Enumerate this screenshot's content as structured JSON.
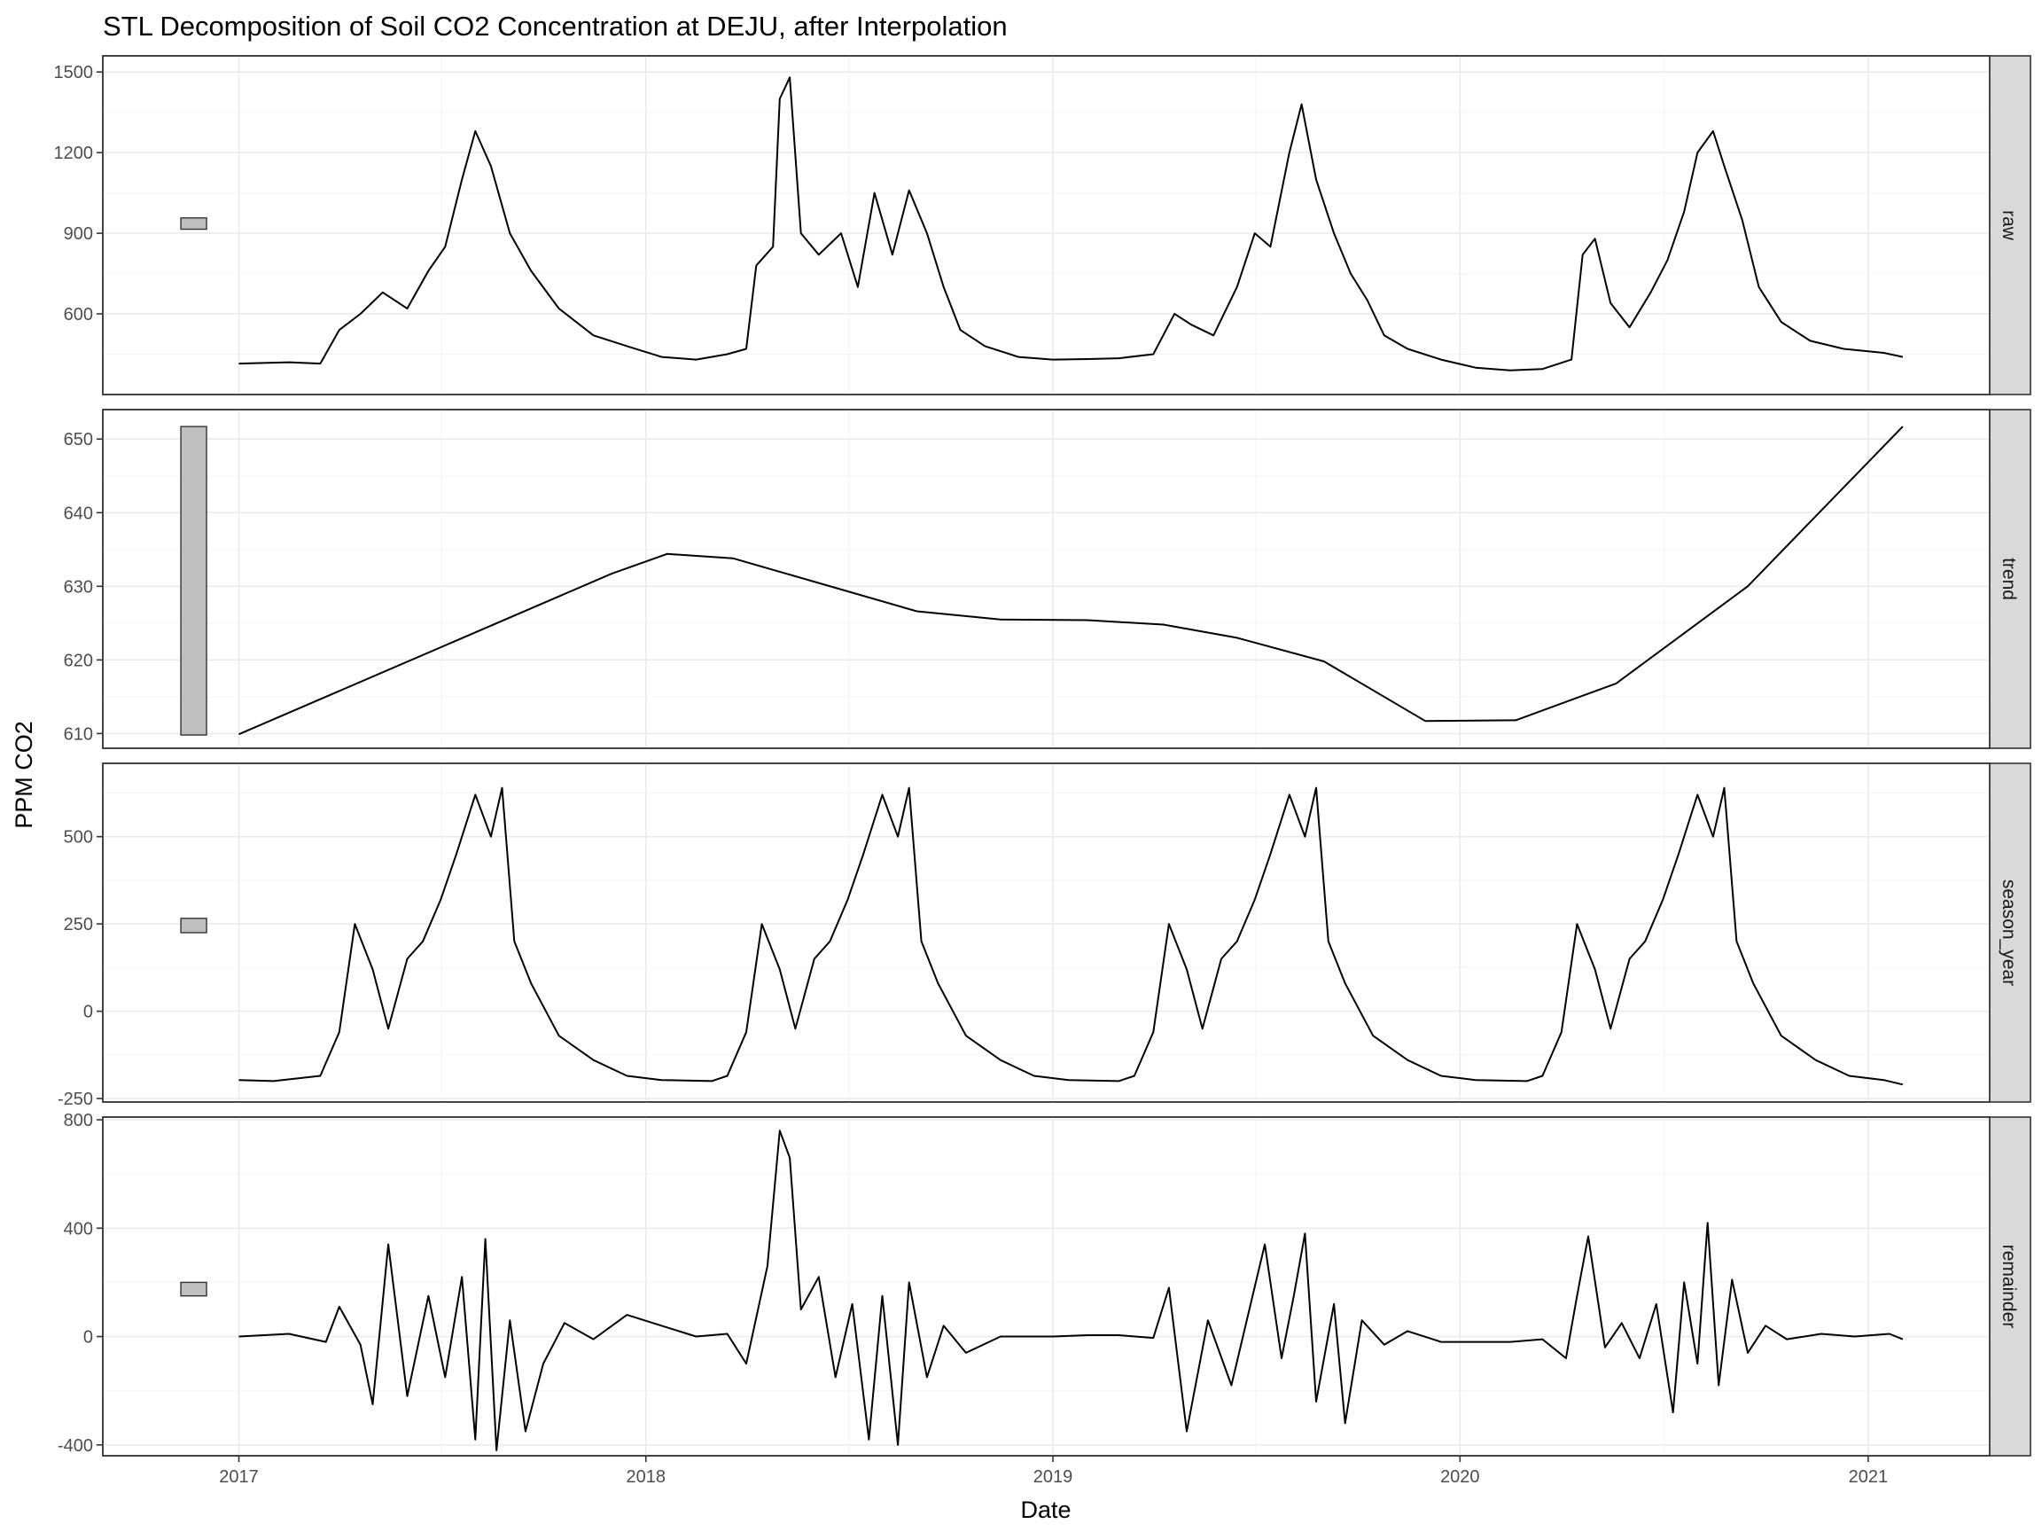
{
  "chart_data": {
    "type": "line",
    "title": "STL Decomposition of Soil CO2 Concentration at DEJU, after Interpolation",
    "xlabel": "Date",
    "ylabel": "PPM CO2",
    "x_ticks": [
      "2017",
      "2018",
      "2019",
      "2020",
      "2021"
    ],
    "xlim": [
      "2016-09-01",
      "2021-04-20"
    ],
    "grid": true,
    "legend": "none",
    "line_color": "#000000",
    "panels": [
      {
        "name": "raw",
        "ylim": [
          300,
          1560
        ],
        "y_ticks": [
          600,
          900,
          1200,
          1500
        ],
        "y_tick_labels": [
          "600",
          "900",
          "1200",
          "1500"
        ],
        "scale_bar": [
          915,
          957
        ],
        "points": [
          [
            "2017-01-01",
            415
          ],
          [
            "2017-02-15",
            420
          ],
          [
            "2017-03-15",
            415
          ],
          [
            "2017-04-01",
            540
          ],
          [
            "2017-04-20",
            600
          ],
          [
            "2017-05-10",
            680
          ],
          [
            "2017-06-01",
            620
          ],
          [
            "2017-06-20",
            760
          ],
          [
            "2017-07-05",
            850
          ],
          [
            "2017-07-20",
            1100
          ],
          [
            "2017-08-01",
            1280
          ],
          [
            "2017-08-15",
            1150
          ],
          [
            "2017-09-01",
            900
          ],
          [
            "2017-09-20",
            760
          ],
          [
            "2017-10-15",
            620
          ],
          [
            "2017-11-15",
            520
          ],
          [
            "2017-12-15",
            480
          ],
          [
            "2018-01-15",
            440
          ],
          [
            "2018-02-15",
            430
          ],
          [
            "2018-03-15",
            450
          ],
          [
            "2018-04-01",
            470
          ],
          [
            "2018-04-10",
            780
          ],
          [
            "2018-04-25",
            850
          ],
          [
            "2018-05-01",
            1400
          ],
          [
            "2018-05-10",
            1480
          ],
          [
            "2018-05-20",
            900
          ],
          [
            "2018-06-05",
            820
          ],
          [
            "2018-06-25",
            900
          ],
          [
            "2018-07-10",
            700
          ],
          [
            "2018-07-25",
            1050
          ],
          [
            "2018-08-10",
            820
          ],
          [
            "2018-08-25",
            1060
          ],
          [
            "2018-09-10",
            900
          ],
          [
            "2018-09-25",
            700
          ],
          [
            "2018-10-10",
            540
          ],
          [
            "2018-11-01",
            480
          ],
          [
            "2018-12-01",
            440
          ],
          [
            "2019-01-01",
            430
          ],
          [
            "2019-02-01",
            432
          ],
          [
            "2019-03-01",
            435
          ],
          [
            "2019-04-01",
            450
          ],
          [
            "2019-04-20",
            600
          ],
          [
            "2019-05-05",
            560
          ],
          [
            "2019-05-25",
            520
          ],
          [
            "2019-06-15",
            700
          ],
          [
            "2019-07-01",
            900
          ],
          [
            "2019-07-15",
            850
          ],
          [
            "2019-08-01",
            1200
          ],
          [
            "2019-08-12",
            1380
          ],
          [
            "2019-08-25",
            1100
          ],
          [
            "2019-09-10",
            900
          ],
          [
            "2019-09-25",
            750
          ],
          [
            "2019-10-10",
            650
          ],
          [
            "2019-10-25",
            520
          ],
          [
            "2019-11-15",
            470
          ],
          [
            "2019-12-15",
            430
          ],
          [
            "2020-01-15",
            400
          ],
          [
            "2020-02-15",
            390
          ],
          [
            "2020-03-15",
            395
          ],
          [
            "2020-04-10",
            430
          ],
          [
            "2020-04-20",
            820
          ],
          [
            "2020-05-01",
            880
          ],
          [
            "2020-05-15",
            640
          ],
          [
            "2020-06-01",
            550
          ],
          [
            "2020-06-20",
            680
          ],
          [
            "2020-07-05",
            800
          ],
          [
            "2020-07-20",
            980
          ],
          [
            "2020-08-01",
            1200
          ],
          [
            "2020-08-15",
            1280
          ],
          [
            "2020-08-25",
            1150
          ],
          [
            "2020-09-10",
            950
          ],
          [
            "2020-09-25",
            700
          ],
          [
            "2020-10-15",
            570
          ],
          [
            "2020-11-10",
            500
          ],
          [
            "2020-12-10",
            470
          ],
          [
            "2021-01-15",
            455
          ],
          [
            "2021-02-01",
            440
          ]
        ]
      },
      {
        "name": "trend",
        "ylim": [
          608,
          654
        ],
        "y_ticks": [
          610,
          620,
          630,
          640,
          650
        ],
        "y_tick_labels": [
          "610",
          "620",
          "630",
          "640",
          "650"
        ],
        "scale_bar": [
          609.8,
          651.7
        ],
        "points": [
          [
            "2017-01-01",
            609.9
          ],
          [
            "2017-12-01",
            631.7
          ],
          [
            "2018-01-20",
            634.4
          ],
          [
            "2018-03-20",
            633.8
          ],
          [
            "2018-09-01",
            626.6
          ],
          [
            "2018-11-15",
            625.5
          ],
          [
            "2019-02-01",
            625.4
          ],
          [
            "2019-04-10",
            624.8
          ],
          [
            "2019-06-15",
            623.0
          ],
          [
            "2019-09-01",
            619.8
          ],
          [
            "2019-12-01",
            611.7
          ],
          [
            "2020-02-20",
            611.8
          ],
          [
            "2020-05-20",
            616.8
          ],
          [
            "2020-09-15",
            630.0
          ],
          [
            "2021-02-01",
            651.7
          ]
        ]
      },
      {
        "name": "season_year",
        "ylim": [
          -260,
          710
        ],
        "y_ticks": [
          -250,
          0,
          250,
          500
        ],
        "y_tick_labels": [
          "-250",
          "0",
          "250",
          "500"
        ],
        "scale_bar": [
          225,
          266
        ],
        "points": [
          [
            "2017-01-01",
            -197
          ],
          [
            "2017-02-01",
            -200
          ],
          [
            "2017-03-15",
            -185
          ],
          [
            "2017-04-01",
            -60
          ],
          [
            "2017-04-15",
            250
          ],
          [
            "2017-05-01",
            120
          ],
          [
            "2017-05-15",
            -50
          ],
          [
            "2017-06-01",
            150
          ],
          [
            "2017-06-15",
            200
          ],
          [
            "2017-07-01",
            320
          ],
          [
            "2017-07-15",
            450
          ],
          [
            "2017-08-01",
            620
          ],
          [
            "2017-08-15",
            500
          ],
          [
            "2017-08-25",
            640
          ],
          [
            "2017-09-05",
            200
          ],
          [
            "2017-09-20",
            80
          ],
          [
            "2017-10-15",
            -70
          ],
          [
            "2017-11-15",
            -140
          ],
          [
            "2017-12-15",
            -185
          ],
          [
            "2018-01-15",
            -197
          ],
          [
            "2018-03-01",
            -200
          ],
          [
            "2018-03-15",
            -185
          ],
          [
            "2018-04-01",
            -60
          ],
          [
            "2018-04-15",
            250
          ],
          [
            "2018-05-01",
            120
          ],
          [
            "2018-05-15",
            -50
          ],
          [
            "2018-06-01",
            150
          ],
          [
            "2018-06-15",
            200
          ],
          [
            "2018-07-01",
            320
          ],
          [
            "2018-07-15",
            450
          ],
          [
            "2018-08-01",
            620
          ],
          [
            "2018-08-15",
            500
          ],
          [
            "2018-08-25",
            640
          ],
          [
            "2018-09-05",
            200
          ],
          [
            "2018-09-20",
            80
          ],
          [
            "2018-10-15",
            -70
          ],
          [
            "2018-11-15",
            -140
          ],
          [
            "2018-12-15",
            -185
          ],
          [
            "2019-01-15",
            -197
          ],
          [
            "2019-03-01",
            -200
          ],
          [
            "2019-03-15",
            -185
          ],
          [
            "2019-04-01",
            -60
          ],
          [
            "2019-04-15",
            250
          ],
          [
            "2019-05-01",
            120
          ],
          [
            "2019-05-15",
            -50
          ],
          [
            "2019-06-01",
            150
          ],
          [
            "2019-06-15",
            200
          ],
          [
            "2019-07-01",
            320
          ],
          [
            "2019-07-15",
            450
          ],
          [
            "2019-08-01",
            620
          ],
          [
            "2019-08-15",
            500
          ],
          [
            "2019-08-25",
            640
          ],
          [
            "2019-09-05",
            200
          ],
          [
            "2019-09-20",
            80
          ],
          [
            "2019-10-15",
            -70
          ],
          [
            "2019-11-15",
            -140
          ],
          [
            "2019-12-15",
            -185
          ],
          [
            "2020-01-15",
            -197
          ],
          [
            "2020-03-01",
            -200
          ],
          [
            "2020-03-15",
            -185
          ],
          [
            "2020-04-01",
            -60
          ],
          [
            "2020-04-15",
            250
          ],
          [
            "2020-05-01",
            120
          ],
          [
            "2020-05-15",
            -50
          ],
          [
            "2020-06-01",
            150
          ],
          [
            "2020-06-15",
            200
          ],
          [
            "2020-07-01",
            320
          ],
          [
            "2020-07-15",
            450
          ],
          [
            "2020-08-01",
            620
          ],
          [
            "2020-08-15",
            500
          ],
          [
            "2020-08-25",
            640
          ],
          [
            "2020-09-05",
            200
          ],
          [
            "2020-09-20",
            80
          ],
          [
            "2020-10-15",
            -70
          ],
          [
            "2020-11-15",
            -140
          ],
          [
            "2020-12-15",
            -185
          ],
          [
            "2021-01-15",
            -197
          ],
          [
            "2021-02-01",
            -210
          ]
        ]
      },
      {
        "name": "remainder",
        "ylim": [
          -440,
          810
        ],
        "y_ticks": [
          -400,
          0,
          400,
          800
        ],
        "y_tick_labels": [
          "-400",
          "0",
          "400",
          "800"
        ],
        "scale_bar": [
          150,
          200
        ],
        "points": [
          [
            "2017-01-01",
            0
          ],
          [
            "2017-02-15",
            10
          ],
          [
            "2017-03-20",
            -20
          ],
          [
            "2017-04-01",
            110
          ],
          [
            "2017-04-20",
            -30
          ],
          [
            "2017-05-01",
            -250
          ],
          [
            "2017-05-15",
            340
          ],
          [
            "2017-06-01",
            -220
          ],
          [
            "2017-06-20",
            150
          ],
          [
            "2017-07-05",
            -150
          ],
          [
            "2017-07-20",
            220
          ],
          [
            "2017-08-01",
            -380
          ],
          [
            "2017-08-10",
            360
          ],
          [
            "2017-08-20",
            -420
          ],
          [
            "2017-09-01",
            60
          ],
          [
            "2017-09-15",
            -350
          ],
          [
            "2017-10-01",
            -100
          ],
          [
            "2017-10-20",
            50
          ],
          [
            "2017-11-15",
            -10
          ],
          [
            "2017-12-15",
            80
          ],
          [
            "2018-01-15",
            40
          ],
          [
            "2018-02-15",
            0
          ],
          [
            "2018-03-15",
            10
          ],
          [
            "2018-04-01",
            -100
          ],
          [
            "2018-04-20",
            260
          ],
          [
            "2018-05-01",
            760
          ],
          [
            "2018-05-10",
            660
          ],
          [
            "2018-05-20",
            100
          ],
          [
            "2018-06-05",
            220
          ],
          [
            "2018-06-20",
            -150
          ],
          [
            "2018-07-05",
            120
          ],
          [
            "2018-07-20",
            -380
          ],
          [
            "2018-08-01",
            150
          ],
          [
            "2018-08-15",
            -400
          ],
          [
            "2018-08-25",
            200
          ],
          [
            "2018-09-10",
            -150
          ],
          [
            "2018-09-25",
            40
          ],
          [
            "2018-10-15",
            -60
          ],
          [
            "2018-11-15",
            0
          ],
          [
            "2019-01-01",
            0
          ],
          [
            "2019-02-01",
            5
          ],
          [
            "2019-03-01",
            5
          ],
          [
            "2019-04-01",
            -5
          ],
          [
            "2019-04-15",
            180
          ],
          [
            "2019-05-01",
            -350
          ],
          [
            "2019-05-20",
            60
          ],
          [
            "2019-06-10",
            -180
          ],
          [
            "2019-06-25",
            80
          ],
          [
            "2019-07-10",
            340
          ],
          [
            "2019-07-25",
            -80
          ],
          [
            "2019-08-05",
            150
          ],
          [
            "2019-08-15",
            380
          ],
          [
            "2019-08-25",
            -240
          ],
          [
            "2019-09-10",
            120
          ],
          [
            "2019-09-20",
            -320
          ],
          [
            "2019-10-05",
            60
          ],
          [
            "2019-10-25",
            -30
          ],
          [
            "2019-11-15",
            20
          ],
          [
            "2019-12-15",
            -20
          ],
          [
            "2020-01-15",
            -20
          ],
          [
            "2020-02-15",
            -20
          ],
          [
            "2020-03-15",
            -10
          ],
          [
            "2020-04-05",
            -80
          ],
          [
            "2020-04-15",
            150
          ],
          [
            "2020-04-25",
            370
          ],
          [
            "2020-05-10",
            -40
          ],
          [
            "2020-05-25",
            50
          ],
          [
            "2020-06-10",
            -80
          ],
          [
            "2020-06-25",
            120
          ],
          [
            "2020-07-10",
            -280
          ],
          [
            "2020-07-20",
            200
          ],
          [
            "2020-08-01",
            -100
          ],
          [
            "2020-08-10",
            420
          ],
          [
            "2020-08-20",
            -180
          ],
          [
            "2020-09-01",
            210
          ],
          [
            "2020-09-15",
            -60
          ],
          [
            "2020-10-01",
            40
          ],
          [
            "2020-10-20",
            -10
          ],
          [
            "2020-11-20",
            10
          ],
          [
            "2020-12-20",
            0
          ],
          [
            "2021-01-20",
            10
          ],
          [
            "2021-02-01",
            -10
          ]
        ]
      }
    ]
  }
}
